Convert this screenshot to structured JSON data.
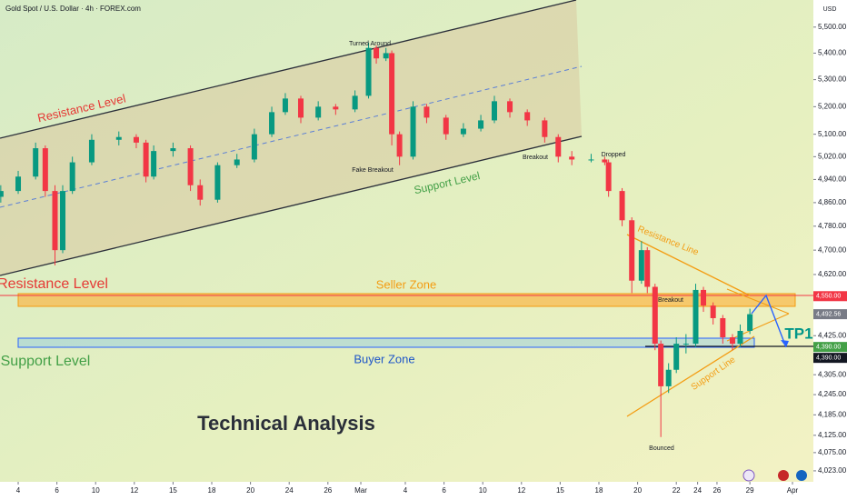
{
  "chart_data": {
    "type": "candlestick",
    "title": "Gold Spot / U.S. Dollar · 4h · FOREX.com",
    "currency": "USD",
    "log_scale": true,
    "up_color": "#089981",
    "down_color": "#f23645",
    "ylim": [
      3992,
      5606
    ],
    "xlim": [
      -0.94,
      41.08
    ],
    "yticks": [
      {
        "value": 5500,
        "label": "5,500.00"
      },
      {
        "value": 5400,
        "label": "5,400.00"
      },
      {
        "value": 5300,
        "label": "5,300.00"
      },
      {
        "value": 5200,
        "label": "5,200.00"
      },
      {
        "value": 5100,
        "label": "5,100.00"
      },
      {
        "value": 5020,
        "label": "5,020.00"
      },
      {
        "value": 4940,
        "label": "4,940.00"
      },
      {
        "value": 4860,
        "label": "4,860.00"
      },
      {
        "value": 4780,
        "label": "4,780.00"
      },
      {
        "value": 4700,
        "label": "4,700.00"
      },
      {
        "value": 4620,
        "label": "4,620.00"
      },
      {
        "value": 4425,
        "label": "4,425.00"
      },
      {
        "value": 4305,
        "label": "4,305.00"
      },
      {
        "value": 4245,
        "label": "4,245.00"
      },
      {
        "value": 4185,
        "label": "4,185.00"
      },
      {
        "value": 4125,
        "label": "4,125.00"
      },
      {
        "value": 4075,
        "label": "4,075.00"
      },
      {
        "value": 4023,
        "label": "4,023.00"
      }
    ],
    "xticks": [
      {
        "value": 0,
        "label": "4"
      },
      {
        "value": 2,
        "label": "6"
      },
      {
        "value": 4,
        "label": "10"
      },
      {
        "value": 6,
        "label": "12"
      },
      {
        "value": 8,
        "label": "15"
      },
      {
        "value": 10,
        "label": "18"
      },
      {
        "value": 12,
        "label": "20"
      },
      {
        "value": 14,
        "label": "24"
      },
      {
        "value": 16,
        "label": "26"
      },
      {
        "value": 17.7,
        "label": "Mar"
      },
      {
        "value": 20,
        "label": "4"
      },
      {
        "value": 22,
        "label": "6"
      },
      {
        "value": 24,
        "label": "10"
      },
      {
        "value": 26,
        "label": "12"
      },
      {
        "value": 28,
        "label": "15"
      },
      {
        "value": 30,
        "label": "18"
      },
      {
        "value": 32,
        "label": "20"
      },
      {
        "value": 34,
        "label": "22"
      },
      {
        "value": 35.1,
        "label": "24"
      },
      {
        "value": 36.1,
        "label": "26"
      },
      {
        "value": 37.8,
        "label": "29"
      },
      {
        "value": 40,
        "label": "Apr"
      }
    ],
    "x": [
      -0.9,
      0,
      0.9,
      1.4,
      1.9,
      2.3,
      2.8,
      3.8,
      5.2,
      6.1,
      6.6,
      7.0,
      8.0,
      8.9,
      9.4,
      10.3,
      11.3,
      12.2,
      13.1,
      13.8,
      14.6,
      15.5,
      16.4,
      17.4,
      18.1,
      18.5,
      19.0,
      19.3,
      19.7,
      20.4,
      21.1,
      22.1,
      23.0,
      23.9,
      24.6,
      25.4,
      26.3,
      27.2,
      27.9,
      28.6,
      29.6,
      30.3,
      30.5,
      31.2,
      31.7,
      32.2,
      32.5,
      32.9,
      33.2,
      33.6,
      34.0,
      34.5,
      35.0,
      35.4,
      35.9,
      36.4,
      36.9,
      37.3,
      37.8
    ],
    "open": [
      4880,
      4900,
      4950,
      5050,
      4900,
      4700,
      4900,
      5000,
      5080,
      5090,
      5070,
      4950,
      5040,
      5050,
      4920,
      4870,
      4990,
      5010,
      5100,
      5180,
      5230,
      5160,
      5200,
      5190,
      5240,
      5420,
      5380,
      5400,
      5100,
      5020,
      5200,
      5160,
      5100,
      5120,
      5150,
      5220,
      5180,
      5150,
      5090,
      5020,
      5010,
      5010,
      5000,
      4900,
      4800,
      4600,
      4700,
      4580,
      4400,
      4270,
      4320,
      4400,
      4400,
      4570,
      4520,
      4480,
      4420,
      4400,
      4440
    ],
    "high": [
      4920,
      4970,
      5070,
      5060,
      4920,
      4920,
      5020,
      5100,
      5110,
      5100,
      5080,
      5060,
      5070,
      5060,
      4940,
      5000,
      5030,
      5120,
      5200,
      5250,
      5240,
      5220,
      5210,
      5260,
      5440,
      5430,
      5420,
      5410,
      5110,
      5220,
      5210,
      5170,
      5140,
      5170,
      5240,
      5230,
      5190,
      5160,
      5100,
      5040,
      5030,
      5020,
      5010,
      4910,
      4810,
      4730,
      4710,
      4590,
      4410,
      4340,
      4420,
      4430,
      4590,
      4580,
      4530,
      4490,
      4430,
      4460,
      4510
    ],
    "low": [
      4860,
      4890,
      4940,
      4880,
      4650,
      4690,
      4890,
      4990,
      5060,
      5050,
      4930,
      4940,
      5020,
      4900,
      4850,
      4860,
      4980,
      5000,
      5090,
      5170,
      5140,
      5150,
      5170,
      5180,
      5230,
      5360,
      5370,
      5060,
      4990,
      5010,
      5140,
      5080,
      5090,
      5110,
      5140,
      5160,
      5130,
      5070,
      5000,
      4990,
      5000,
      4990,
      4880,
      4780,
      4560,
      4590,
      4560,
      4380,
      4120,
      4250,
      4310,
      4370,
      4390,
      4500,
      4460,
      4400,
      4380,
      4390,
      4430
    ],
    "close": [
      4900,
      4950,
      5050,
      4900,
      4700,
      4900,
      5000,
      5080,
      5090,
      5070,
      4950,
      5040,
      5050,
      4920,
      4870,
      4990,
      5010,
      5100,
      5180,
      5230,
      5160,
      5200,
      5190,
      5240,
      5420,
      5380,
      5400,
      5100,
      5020,
      5200,
      5160,
      5100,
      5120,
      5150,
      5220,
      5180,
      5150,
      5090,
      5020,
      5010,
      5010,
      5000,
      4900,
      4800,
      4600,
      4700,
      4580,
      4400,
      4270,
      4320,
      4400,
      4400,
      4570,
      4520,
      4480,
      4420,
      4400,
      4440,
      4492.56
    ],
    "price_markers": [
      {
        "value": 4550,
        "label": "4,550.00",
        "color": "#f23645"
      },
      {
        "value": 4492.56,
        "label": "4,492.56",
        "color": "#787b86"
      },
      {
        "value": 4390,
        "label": "4,390.00",
        "color": "#43a047"
      },
      {
        "value": 4390,
        "label": "4,390.00",
        "color": "#131722"
      }
    ],
    "annotations": [
      {
        "text": "Resistance Level",
        "color": "#e53935"
      },
      {
        "text": "Turned Around",
        "color": "#131722"
      },
      {
        "text": "Fake Breakout",
        "color": "#131722"
      },
      {
        "text": "Breakout",
        "color": "#131722"
      },
      {
        "text": "Dropped",
        "color": "#131722"
      },
      {
        "text": "Support Level",
        "color": "#43a047"
      },
      {
        "text": "Resistance Level",
        "color": "#e53935"
      },
      {
        "text": "Seller Zone",
        "color": "#f39c12"
      },
      {
        "text": "Support Level",
        "color": "#43a047"
      },
      {
        "text": "Buyer Zone",
        "color": "#1e56c8"
      },
      {
        "text": "Breakout",
        "color": "#131722"
      },
      {
        "text": "Resistance Line",
        "color": "#f39c12"
      },
      {
        "text": "Support Line",
        "color": "#f39c12"
      },
      {
        "text": "Bounced",
        "color": "#131722"
      },
      {
        "text": "TP1",
        "color": "#009688"
      },
      {
        "text": "Technical Analysis",
        "color": "#2a2e39"
      }
    ]
  }
}
